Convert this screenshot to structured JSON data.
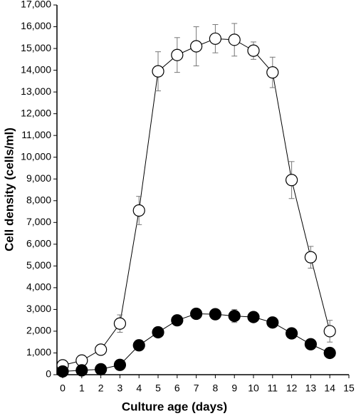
{
  "chart_data": {
    "type": "line",
    "x_label": "Culture age (days)",
    "y_label": "Cell density (cells/ml)",
    "x": [
      0,
      1,
      2,
      3,
      4,
      5,
      6,
      7,
      8,
      9,
      10,
      11,
      12,
      13,
      14
    ],
    "series": [
      {
        "marker": "open",
        "color": "#000000",
        "values": [
          430,
          650,
          1150,
          2350,
          7550,
          13950,
          14700,
          15100,
          15450,
          15400,
          14900,
          13900,
          8950,
          5400,
          2000
        ],
        "errors": [
          100,
          100,
          100,
          400,
          650,
          900,
          800,
          900,
          650,
          750,
          400,
          700,
          850,
          500,
          500
        ]
      },
      {
        "marker": "filled",
        "color": "#000000",
        "values": [
          150,
          200,
          250,
          450,
          1350,
          1950,
          2500,
          2800,
          2780,
          2700,
          2650,
          2400,
          1900,
          1400,
          1000
        ],
        "errors": [
          80,
          80,
          80,
          100,
          100,
          100,
          100,
          100,
          100,
          300,
          150,
          200,
          100,
          100,
          100
        ]
      }
    ],
    "xlim": [
      -0.3,
      15
    ],
    "xticks": [
      0,
      1,
      2,
      3,
      4,
      5,
      6,
      7,
      8,
      9,
      10,
      11,
      12,
      13,
      14,
      15
    ],
    "ylim": [
      0,
      17000
    ],
    "yticks": [
      0,
      {
        "value": 1000,
        "label": "1,000"
      },
      {
        "value": 2000,
        "label": "2,000"
      },
      {
        "value": 3000,
        "label": "3,000"
      },
      {
        "value": 4000,
        "label": "4,000"
      },
      {
        "value": 5000,
        "label": "5,000"
      },
      {
        "value": 6000,
        "label": "6,000"
      },
      {
        "value": 7000,
        "label": "7,000"
      },
      {
        "value": 8000,
        "label": "8,000"
      },
      {
        "value": 9000,
        "label": "9,000"
      },
      {
        "value": 10000,
        "label": "10,000"
      },
      {
        "value": 11000,
        "label": "11,000"
      },
      {
        "value": 12000,
        "label": "12,000"
      },
      {
        "value": 13000,
        "label": "13,000"
      },
      {
        "value": 14000,
        "label": "14,000"
      },
      {
        "value": 15000,
        "label": "15,000"
      },
      {
        "value": 16000,
        "label": "16,000"
      },
      {
        "value": 17000,
        "label": "17,000"
      }
    ],
    "grid": false
  }
}
